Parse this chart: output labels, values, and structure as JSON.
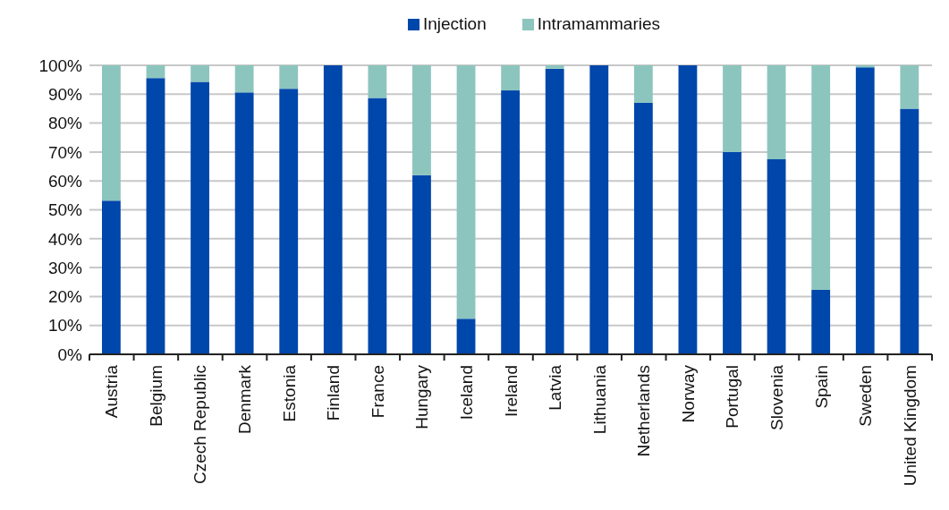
{
  "chart_data": {
    "type": "bar",
    "stacked": true,
    "categories": [
      "Austria",
      "Belgium",
      "Czech Republic",
      "Denmark",
      "Estonia",
      "Finland",
      "France",
      "Hungary",
      "Iceland",
      "Ireland",
      "Latvia",
      "Lithuania",
      "Netherlands",
      "Norway",
      "Portugal",
      "Slovenia",
      "Spain",
      "Sweden",
      "United Kingdom"
    ],
    "series": [
      {
        "name": "Injection",
        "color": "#0047ab",
        "values": [
          53.2,
          95.6,
          94.3,
          90.6,
          91.9,
          100,
          88.7,
          62,
          12.3,
          91.3,
          98.8,
          100,
          87,
          100,
          70,
          67.5,
          22.3,
          99.3,
          85
        ]
      },
      {
        "name": "Intramammaries",
        "color": "#8cc5be",
        "values": [
          46.8,
          4.4,
          5.7,
          9.4,
          8.1,
          0,
          11.3,
          38,
          87.7,
          8.7,
          1.2,
          0,
          13,
          0,
          30,
          32.5,
          77.7,
          0.7,
          15
        ]
      }
    ],
    "ylim": [
      0,
      100
    ],
    "yticks": [
      {
        "value": 0,
        "label": "0%"
      },
      {
        "value": 10,
        "label": "10%"
      },
      {
        "value": 20,
        "label": "20%"
      },
      {
        "value": 30,
        "label": "30%"
      },
      {
        "value": 40,
        "label": "40%"
      },
      {
        "value": 50,
        "label": "50%"
      },
      {
        "value": 60,
        "label": "60%"
      },
      {
        "value": 70,
        "label": "70%"
      },
      {
        "value": 80,
        "label": "80%"
      },
      {
        "value": 90,
        "label": "90%"
      },
      {
        "value": 100,
        "label": "100%"
      }
    ],
    "grid": "y",
    "legend": "top"
  }
}
